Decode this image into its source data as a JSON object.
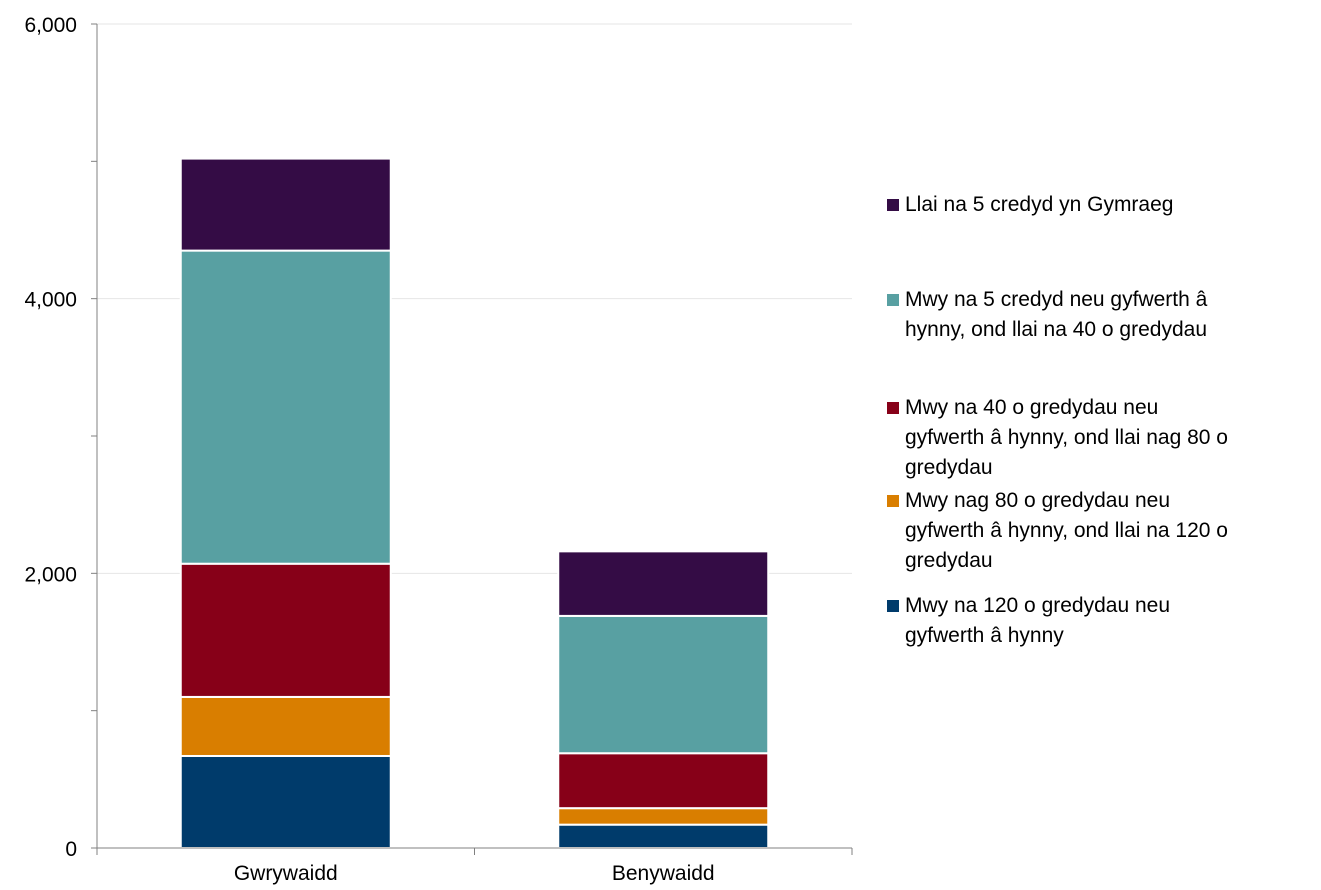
{
  "chart_data": {
    "type": "bar",
    "stacked": true,
    "title": "",
    "xlabel": "",
    "ylabel": "",
    "categories": [
      "Gwrywaidd",
      "Benywaidd"
    ],
    "ylim": [
      0,
      6000
    ],
    "yticks": [
      0,
      2000,
      4000,
      6000
    ],
    "ytick_labels": [
      "0",
      "2,000",
      "4,000",
      "6,000"
    ],
    "grid": true,
    "legend_position": "right",
    "series": [
      {
        "name": "Mwy na 120 o gredydau neu gyfwerth â hynny",
        "color": "#003B6B",
        "values": [
          670,
          170
        ]
      },
      {
        "name": "Mwy nag 80 o gredydau neu gyfwerth â hynny, ond llai na 120 o gredydau",
        "color": "#D97E00",
        "values": [
          430,
          120
        ]
      },
      {
        "name": "Mwy na 40 o gredydau neu gyfwerth â hynny, ond llai nag 80 o gredydau",
        "color": "#870018",
        "values": [
          970,
          400
        ]
      },
      {
        "name": "Mwy na 5 credyd neu gyfwerth â hynny, ond llai na 40 o gredydau",
        "color": "#58A0A2",
        "values": [
          2280,
          1000
        ]
      },
      {
        "name": "Llai na 5 credyd yn Gymraeg",
        "color": "#340C45",
        "values": [
          670,
          470
        ]
      }
    ]
  }
}
